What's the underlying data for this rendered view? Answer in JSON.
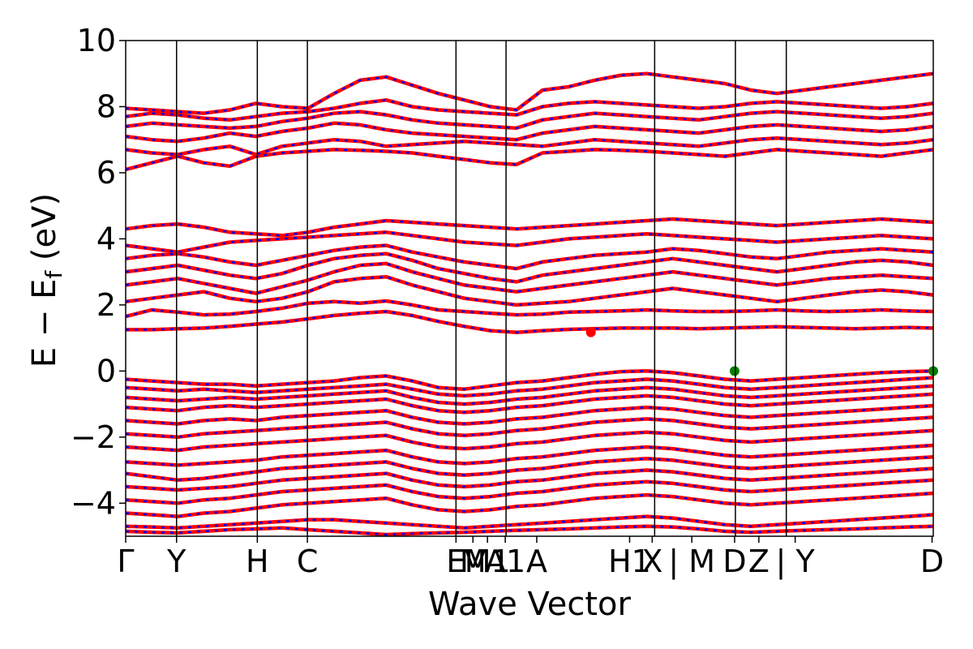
{
  "chart_data": {
    "type": "line",
    "xlabel": "Wave Vector",
    "ylabel_main": "E − E",
    "ylabel_sub": "f",
    "ylabel_unit": " (eV)",
    "ylim": [
      -5,
      10
    ],
    "yticks": [
      -4,
      -2,
      0,
      2,
      4,
      6,
      8,
      10
    ],
    "ytick_labels": [
      "−4",
      "−2",
      "0",
      "2",
      "4",
      "6",
      "8",
      "10"
    ],
    "x_range": [
      0,
      1
    ],
    "high_symmetry_points": [
      {
        "label": "Γ",
        "x": 0.0
      },
      {
        "label": "Y",
        "x": 0.063
      },
      {
        "label": "H",
        "x": 0.163
      },
      {
        "label": "C",
        "x": 0.225
      },
      {
        "label": "E",
        "x": 0.409
      },
      {
        "label": "M",
        "x": 0.43
      },
      {
        "label": "M1",
        "x": 0.448
      },
      {
        "label": "A1",
        "x": 0.47
      },
      {
        "label": "A",
        "x": 0.509
      },
      {
        "label": "H1",
        "x": 0.624
      },
      {
        "label": "X",
        "x": 0.652
      },
      {
        "label": "| M",
        "x": 0.701
      },
      {
        "label": "D",
        "x": 0.754
      },
      {
        "label": "Z",
        "x": 0.784
      },
      {
        "label": "| Y",
        "x": 0.829
      },
      {
        "label": "D",
        "x": 0.9985
      }
    ],
    "segment_boundaries": [
      0.0,
      0.063,
      0.163,
      0.225,
      0.409,
      0.471,
      0.655,
      0.755,
      0.818,
      1.0
    ],
    "styles": {
      "spin_up_color": "#ff0000",
      "spin_down_color": "#0000ff",
      "vbm_color": "#008000",
      "cbm_color": "#ff0000"
    },
    "vbm_points": [
      {
        "x": 0.754,
        "y": 0.0
      },
      {
        "x": 1.0,
        "y": 0.0
      }
    ],
    "cbm_point": {
      "x": 0.576,
      "y": 1.17
    },
    "conduction_bands": [
      [
        1.25,
        1.25,
        1.28,
        1.3,
        1.35,
        1.42,
        1.48,
        1.58,
        1.68,
        1.75,
        1.8,
        1.68,
        1.5,
        1.35,
        1.22,
        1.17,
        1.22,
        1.26,
        1.28,
        1.3,
        1.3,
        1.3,
        1.28,
        1.3,
        1.32,
        1.34,
        1.32,
        1.3,
        1.28,
        1.3,
        1.32,
        1.3
      ],
      [
        1.65,
        1.85,
        1.78,
        1.7,
        1.72,
        1.8,
        1.9,
        2.05,
        2.1,
        2.05,
        2.12,
        2.0,
        1.85,
        1.8,
        1.75,
        1.7,
        1.72,
        1.78,
        1.8,
        1.82,
        1.85,
        1.82,
        1.8,
        1.8,
        1.82,
        1.85,
        1.82,
        1.8,
        1.82,
        1.85,
        1.82,
        1.8
      ],
      [
        2.1,
        2.2,
        2.3,
        2.4,
        2.2,
        2.1,
        2.2,
        2.4,
        2.7,
        2.8,
        2.85,
        2.6,
        2.4,
        2.2,
        2.1,
        2.0,
        2.05,
        2.1,
        2.2,
        2.3,
        2.4,
        2.5,
        2.4,
        2.3,
        2.2,
        2.1,
        2.2,
        2.3,
        2.4,
        2.45,
        2.4,
        2.3
      ],
      [
        2.6,
        2.7,
        2.8,
        2.65,
        2.5,
        2.35,
        2.55,
        2.75,
        3.0,
        3.2,
        3.25,
        3.0,
        2.8,
        2.6,
        2.5,
        2.4,
        2.5,
        2.6,
        2.7,
        2.8,
        2.9,
        3.0,
        2.9,
        2.8,
        2.7,
        2.6,
        2.7,
        2.8,
        2.85,
        2.9,
        2.85,
        2.8
      ],
      [
        3.0,
        3.1,
        3.2,
        3.05,
        2.9,
        2.8,
        2.95,
        3.2,
        3.4,
        3.5,
        3.55,
        3.35,
        3.1,
        2.95,
        2.8,
        2.7,
        2.9,
        3.0,
        3.1,
        3.2,
        3.3,
        3.4,
        3.3,
        3.2,
        3.1,
        3.0,
        3.1,
        3.2,
        3.3,
        3.35,
        3.3,
        3.2
      ],
      [
        3.4,
        3.5,
        3.55,
        3.45,
        3.3,
        3.2,
        3.35,
        3.5,
        3.65,
        3.75,
        3.8,
        3.6,
        3.45,
        3.3,
        3.2,
        3.1,
        3.3,
        3.4,
        3.5,
        3.55,
        3.6,
        3.7,
        3.65,
        3.55,
        3.45,
        3.4,
        3.5,
        3.6,
        3.65,
        3.7,
        3.65,
        3.6
      ],
      [
        3.8,
        3.7,
        3.6,
        3.75,
        3.9,
        3.95,
        4.0,
        4.05,
        4.1,
        4.15,
        4.2,
        4.1,
        4.0,
        3.9,
        3.85,
        3.8,
        3.9,
        4.0,
        4.05,
        4.1,
        4.15,
        4.1,
        4.05,
        4.0,
        3.95,
        3.9,
        3.95,
        4.0,
        4.05,
        4.1,
        4.05,
        4.0
      ],
      [
        4.3,
        4.4,
        4.45,
        4.35,
        4.2,
        4.15,
        4.1,
        4.2,
        4.35,
        4.45,
        4.55,
        4.5,
        4.45,
        4.4,
        4.35,
        4.3,
        4.35,
        4.4,
        4.45,
        4.5,
        4.55,
        4.6,
        4.55,
        4.5,
        4.45,
        4.4,
        4.45,
        4.5,
        4.55,
        4.6,
        4.55,
        4.5
      ]
    ],
    "upper_bands": [
      [
        6.1,
        6.3,
        6.5,
        6.3,
        6.2,
        6.5,
        6.6,
        6.65,
        6.7,
        6.68,
        6.65,
        6.6,
        6.5,
        6.4,
        6.3,
        6.25,
        6.6,
        6.65,
        6.7,
        6.68,
        6.65,
        6.6,
        6.55,
        6.5,
        6.6,
        6.7,
        6.65,
        6.6,
        6.55,
        6.5,
        6.6,
        6.7
      ],
      [
        6.7,
        6.6,
        6.55,
        6.7,
        6.8,
        6.55,
        6.8,
        6.9,
        7.0,
        6.95,
        6.8,
        6.85,
        6.9,
        6.95,
        6.9,
        6.85,
        6.8,
        6.9,
        7.0,
        6.95,
        6.9,
        6.85,
        6.8,
        6.9,
        7.0,
        7.05,
        7.0,
        6.95,
        6.9,
        6.85,
        6.9,
        7.0
      ],
      [
        7.1,
        7.0,
        6.95,
        7.05,
        7.2,
        7.1,
        7.25,
        7.35,
        7.5,
        7.45,
        7.3,
        7.2,
        7.15,
        7.1,
        7.05,
        7.0,
        7.2,
        7.3,
        7.4,
        7.35,
        7.3,
        7.25,
        7.2,
        7.3,
        7.4,
        7.45,
        7.4,
        7.35,
        7.3,
        7.25,
        7.3,
        7.4
      ],
      [
        7.4,
        7.5,
        7.45,
        7.4,
        7.35,
        7.4,
        7.55,
        7.65,
        7.8,
        7.85,
        7.75,
        7.6,
        7.5,
        7.45,
        7.4,
        7.35,
        7.6,
        7.7,
        7.8,
        7.75,
        7.7,
        7.65,
        7.6,
        7.7,
        7.8,
        7.85,
        7.8,
        7.75,
        7.7,
        7.65,
        7.7,
        7.8
      ],
      [
        7.7,
        7.8,
        7.75,
        7.65,
        7.6,
        7.7,
        7.8,
        7.85,
        7.95,
        8.1,
        8.2,
        8.0,
        7.9,
        7.85,
        7.8,
        7.75,
        8.0,
        8.1,
        8.15,
        8.1,
        8.05,
        8.0,
        7.95,
        8.0,
        8.1,
        8.15,
        8.1,
        8.05,
        8.0,
        7.95,
        8.0,
        8.1
      ],
      [
        7.95,
        7.9,
        7.85,
        7.8,
        7.9,
        8.1,
        8.0,
        7.95,
        8.4,
        8.8,
        8.9,
        8.65,
        8.4,
        8.2,
        8.0,
        7.9,
        8.5,
        8.6,
        8.8,
        8.95,
        9.0,
        8.9,
        8.8,
        8.7,
        8.5,
        8.4,
        8.5,
        8.6,
        8.7,
        8.8,
        8.9,
        9.0
      ]
    ],
    "valence_bands": [
      [
        -0.25,
        -0.3,
        -0.35,
        -0.4,
        -0.4,
        -0.45,
        -0.4,
        -0.35,
        -0.3,
        -0.2,
        -0.15,
        -0.3,
        -0.5,
        -0.55,
        -0.45,
        -0.35,
        -0.3,
        -0.2,
        -0.1,
        -0.02,
        0.0,
        -0.05,
        -0.15,
        -0.25,
        -0.3,
        -0.25,
        -0.2,
        -0.15,
        -0.1,
        -0.05,
        -0.02,
        0.0
      ],
      [
        -0.5,
        -0.55,
        -0.6,
        -0.55,
        -0.6,
        -0.65,
        -0.6,
        -0.55,
        -0.5,
        -0.45,
        -0.4,
        -0.55,
        -0.7,
        -0.75,
        -0.7,
        -0.6,
        -0.55,
        -0.45,
        -0.35,
        -0.3,
        -0.25,
        -0.3,
        -0.4,
        -0.5,
        -0.55,
        -0.5,
        -0.45,
        -0.4,
        -0.35,
        -0.3,
        -0.25,
        -0.2
      ],
      [
        -0.8,
        -0.85,
        -0.9,
        -0.85,
        -0.8,
        -0.85,
        -0.8,
        -0.75,
        -0.7,
        -0.65,
        -0.6,
        -0.8,
        -0.95,
        -1.0,
        -0.95,
        -0.85,
        -0.8,
        -0.7,
        -0.6,
        -0.55,
        -0.5,
        -0.55,
        -0.65,
        -0.75,
        -0.8,
        -0.75,
        -0.7,
        -0.65,
        -0.6,
        -0.55,
        -0.5,
        -0.45
      ],
      [
        -1.1,
        -1.15,
        -1.2,
        -1.1,
        -1.05,
        -1.1,
        -1.05,
        -1.0,
        -0.95,
        -0.9,
        -0.85,
        -1.05,
        -1.2,
        -1.25,
        -1.2,
        -1.1,
        -1.05,
        -0.95,
        -0.85,
        -0.8,
        -0.75,
        -0.8,
        -0.9,
        -1.0,
        -1.05,
        -1.0,
        -0.95,
        -0.9,
        -0.85,
        -0.8,
        -0.75,
        -0.7
      ],
      [
        -1.5,
        -1.55,
        -1.6,
        -1.5,
        -1.45,
        -1.5,
        -1.4,
        -1.35,
        -1.3,
        -1.25,
        -1.2,
        -1.4,
        -1.55,
        -1.6,
        -1.55,
        -1.45,
        -1.4,
        -1.3,
        -1.2,
        -1.15,
        -1.1,
        -1.15,
        -1.25,
        -1.35,
        -1.4,
        -1.35,
        -1.3,
        -1.25,
        -1.2,
        -1.15,
        -1.1,
        -1.05
      ],
      [
        -1.9,
        -1.95,
        -2.0,
        -1.9,
        -1.85,
        -1.8,
        -1.75,
        -1.7,
        -1.65,
        -1.6,
        -1.55,
        -1.75,
        -1.9,
        -1.95,
        -1.9,
        -1.8,
        -1.75,
        -1.65,
        -1.55,
        -1.5,
        -1.45,
        -1.5,
        -1.6,
        -1.7,
        -1.75,
        -1.7,
        -1.65,
        -1.6,
        -1.55,
        -1.5,
        -1.45,
        -1.4
      ],
      [
        -2.3,
        -2.35,
        -2.4,
        -2.3,
        -2.25,
        -2.2,
        -2.15,
        -2.1,
        -2.05,
        -2.0,
        -1.95,
        -2.15,
        -2.3,
        -2.35,
        -2.3,
        -2.2,
        -2.15,
        -2.05,
        -1.95,
        -1.9,
        -1.85,
        -1.9,
        -2.0,
        -2.1,
        -2.15,
        -2.1,
        -2.05,
        -2.0,
        -1.95,
        -1.9,
        -1.85,
        -1.8
      ],
      [
        -2.75,
        -2.8,
        -2.85,
        -2.8,
        -2.75,
        -2.7,
        -2.6,
        -2.55,
        -2.5,
        -2.45,
        -2.4,
        -2.6,
        -2.75,
        -2.8,
        -2.75,
        -2.65,
        -2.6,
        -2.5,
        -2.4,
        -2.35,
        -2.3,
        -2.35,
        -2.45,
        -2.55,
        -2.6,
        -2.55,
        -2.5,
        -2.45,
        -2.4,
        -2.35,
        -2.3,
        -2.25
      ],
      [
        -3.1,
        -3.2,
        -3.3,
        -3.25,
        -3.15,
        -3.05,
        -2.95,
        -2.9,
        -2.85,
        -2.8,
        -2.75,
        -2.95,
        -3.1,
        -3.15,
        -3.1,
        -3.0,
        -2.95,
        -2.85,
        -2.75,
        -2.7,
        -2.65,
        -2.7,
        -2.8,
        -2.9,
        -2.95,
        -2.9,
        -2.85,
        -2.8,
        -2.75,
        -2.7,
        -2.65,
        -2.6
      ],
      [
        -3.5,
        -3.55,
        -3.6,
        -3.55,
        -3.5,
        -3.4,
        -3.3,
        -3.25,
        -3.2,
        -3.15,
        -3.1,
        -3.3,
        -3.45,
        -3.5,
        -3.45,
        -3.35,
        -3.3,
        -3.2,
        -3.1,
        -3.05,
        -3.0,
        -3.05,
        -3.15,
        -3.25,
        -3.3,
        -3.25,
        -3.2,
        -3.15,
        -3.1,
        -3.05,
        -3.0,
        -2.95
      ],
      [
        -3.9,
        -3.95,
        -4.0,
        -3.9,
        -3.85,
        -3.75,
        -3.65,
        -3.6,
        -3.55,
        -3.5,
        -3.45,
        -3.65,
        -3.8,
        -3.85,
        -3.8,
        -3.7,
        -3.65,
        -3.55,
        -3.45,
        -3.4,
        -3.35,
        -3.4,
        -3.5,
        -3.6,
        -3.65,
        -3.6,
        -3.55,
        -3.5,
        -3.45,
        -3.4,
        -3.35,
        -3.3
      ],
      [
        -4.3,
        -4.35,
        -4.4,
        -4.3,
        -4.25,
        -4.15,
        -4.05,
        -4.0,
        -3.95,
        -3.9,
        -3.85,
        -4.05,
        -4.2,
        -4.25,
        -4.2,
        -4.1,
        -4.05,
        -3.95,
        -3.85,
        -3.8,
        -3.75,
        -3.8,
        -3.9,
        -4.0,
        -4.05,
        -4.0,
        -3.95,
        -3.9,
        -3.85,
        -3.8,
        -3.75,
        -3.7
      ],
      [
        -4.7,
        -4.72,
        -4.75,
        -4.7,
        -4.65,
        -4.6,
        -4.55,
        -4.5,
        -4.5,
        -4.55,
        -4.6,
        -4.65,
        -4.7,
        -4.75,
        -4.7,
        -4.65,
        -4.6,
        -4.55,
        -4.5,
        -4.45,
        -4.4,
        -4.45,
        -4.55,
        -4.65,
        -4.7,
        -4.65,
        -4.6,
        -4.55,
        -4.5,
        -4.45,
        -4.4,
        -4.35
      ],
      [
        -4.85,
        -4.88,
        -4.9,
        -4.85,
        -4.8,
        -4.78,
        -4.75,
        -4.8,
        -4.85,
        -4.9,
        -4.95,
        -4.92,
        -4.9,
        -4.88,
        -4.85,
        -4.82,
        -4.8,
        -4.78,
        -4.75,
        -4.72,
        -4.7,
        -4.72,
        -4.78,
        -4.85,
        -4.88,
        -4.85,
        -4.82,
        -4.8,
        -4.78,
        -4.75,
        -4.72,
        -4.7
      ]
    ]
  }
}
